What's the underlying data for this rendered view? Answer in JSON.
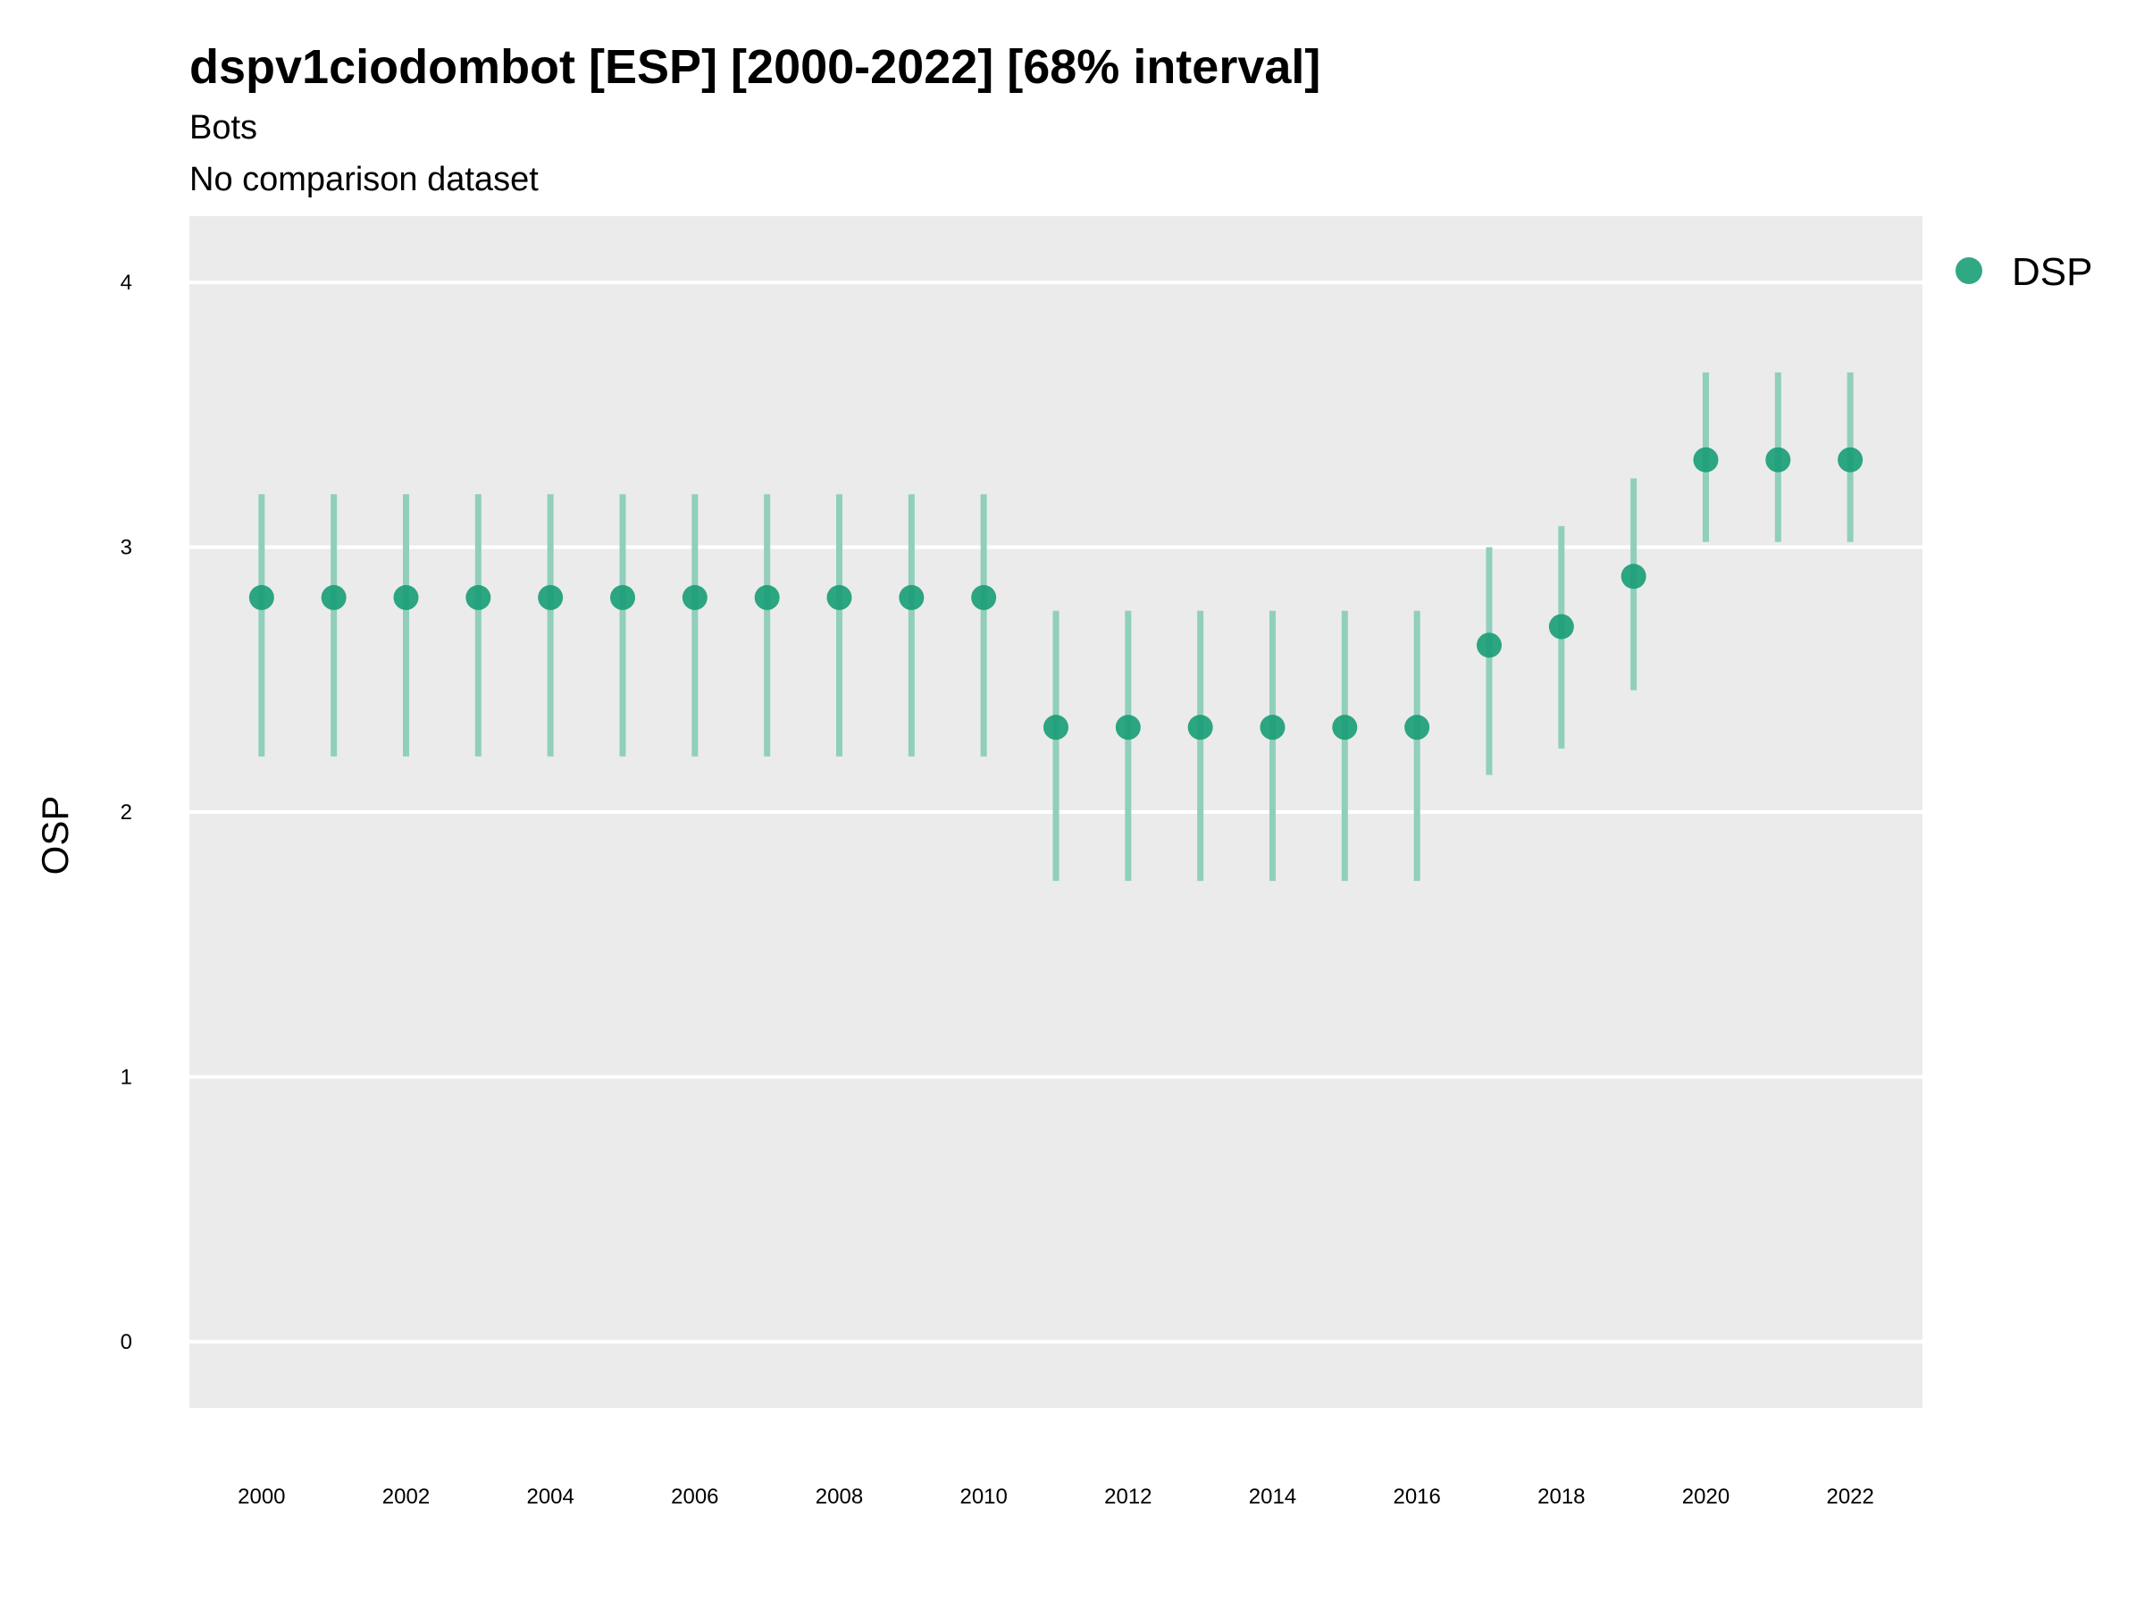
{
  "chart_data": {
    "type": "scatter",
    "title": "dspv1ciodombot [ESP] [2000-2022] [68% interval]",
    "subtitle": "Bots",
    "caption_line": "No comparison dataset",
    "ylabel": "OSP",
    "xlabel": "",
    "ylim": [
      -0.25,
      4.25
    ],
    "xlim": [
      1999,
      2023
    ],
    "y_ticks": [
      0,
      1,
      2,
      3,
      4
    ],
    "x_ticks": [
      2000,
      2002,
      2004,
      2006,
      2008,
      2010,
      2012,
      2014,
      2016,
      2018,
      2020,
      2022
    ],
    "grid": true,
    "legend": {
      "position": "top-right",
      "entries": [
        "DSP"
      ]
    },
    "colors": {
      "point": "#1b9e77",
      "interval": "#8fcfbb",
      "panel": "#ebebeb",
      "grid": "#ffffff"
    },
    "series": [
      {
        "name": "DSP",
        "x": [
          2000,
          2001,
          2002,
          2003,
          2004,
          2005,
          2006,
          2007,
          2008,
          2009,
          2010,
          2011,
          2012,
          2013,
          2014,
          2015,
          2016,
          2017,
          2018,
          2019,
          2020,
          2021,
          2022
        ],
        "y": [
          2.81,
          2.81,
          2.81,
          2.81,
          2.81,
          2.81,
          2.81,
          2.81,
          2.81,
          2.81,
          2.81,
          2.32,
          2.32,
          2.32,
          2.32,
          2.32,
          2.32,
          2.63,
          2.7,
          2.89,
          3.33,
          3.33,
          3.33
        ],
        "lower": [
          2.21,
          2.21,
          2.21,
          2.21,
          2.21,
          2.21,
          2.21,
          2.21,
          2.21,
          2.21,
          2.21,
          1.74,
          1.74,
          1.74,
          1.74,
          1.74,
          1.74,
          2.14,
          2.24,
          2.46,
          3.02,
          3.02,
          3.02
        ],
        "upper": [
          3.2,
          3.2,
          3.2,
          3.2,
          3.2,
          3.2,
          3.2,
          3.2,
          3.2,
          3.2,
          3.2,
          2.76,
          2.76,
          2.76,
          2.76,
          2.76,
          2.76,
          3.0,
          3.08,
          3.26,
          3.66,
          3.66,
          3.66
        ]
      }
    ]
  }
}
